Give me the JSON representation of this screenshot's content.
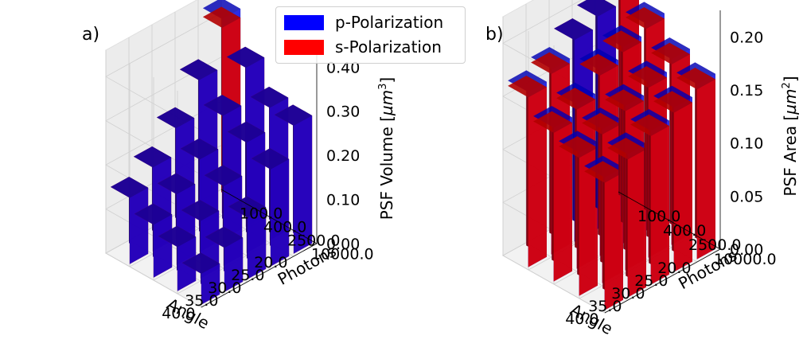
{
  "legend": {
    "p": {
      "label": "p-Polarization",
      "color": "#0000ff"
    },
    "s": {
      "label": "s-Polarization",
      "color": "#ff0000"
    }
  },
  "chart_data": [
    {
      "panel_label": "a)",
      "type": "bar3d",
      "xlabel": "Angle",
      "ylabel": "Photons",
      "zlabel": "PSF Volume [µm³]",
      "zlabel_prefix": "PSF Volume [",
      "zlabel_unit_base": "µm",
      "zlabel_unit_exp": "3",
      "zlabel_suffix": "]",
      "angle_ticks": [
        "20.0",
        "25.0",
        "30.0",
        "35.0",
        "40.0"
      ],
      "photon_ticks": [
        "10000.0",
        "2500.0",
        "400.0",
        "100.0"
      ],
      "zticks": [
        "0.00",
        "0.10",
        "0.20",
        "0.30",
        "0.40"
      ],
      "zlim": [
        0,
        0.46
      ],
      "angles": [
        20,
        25,
        30,
        35,
        40
      ],
      "photons": [
        10000,
        2500,
        400,
        100
      ],
      "series": [
        {
          "name": "s-Polarization",
          "values": [
            [
              0.29,
              0.3,
              0.36,
              0.42
            ],
            [
              0.22,
              0.25,
              0.28,
              0.33
            ],
            [
              0.14,
              0.18,
              0.21,
              0.25
            ],
            [
              0.1,
              0.13,
              0.16,
              0.19
            ],
            [
              0.07,
              0.1,
              0.12,
              0.15
            ]
          ]
        },
        {
          "name": "p-Polarization",
          "values": [
            [
              0.29,
              0.3,
              0.36,
              0.44
            ],
            [
              0.22,
              0.25,
              0.28,
              0.33
            ],
            [
              0.14,
              0.18,
              0.21,
              0.25
            ],
            [
              0.1,
              0.13,
              0.16,
              0.19
            ],
            [
              0.07,
              0.1,
              0.12,
              0.15
            ]
          ]
        }
      ]
    },
    {
      "panel_label": "b)",
      "type": "bar3d",
      "xlabel": "Angle",
      "ylabel": "Photons",
      "zlabel": "PSF Area [µm²]",
      "zlabel_prefix": "PSF Area [",
      "zlabel_unit_base": "µm",
      "zlabel_unit_exp": "2",
      "zlabel_suffix": "]",
      "angle_ticks": [
        "20.0",
        "25.0",
        "30.0",
        "35.0",
        "40.0"
      ],
      "photon_ticks": [
        "10000.0",
        "2500.0",
        "400.0",
        "100.0"
      ],
      "zticks": [
        "0.00",
        "0.05",
        "0.10",
        "0.15",
        "0.20"
      ],
      "zlim": [
        0,
        0.225
      ],
      "angles": [
        20,
        25,
        30,
        35,
        40
      ],
      "photons": [
        10000,
        2500,
        400,
        100
      ],
      "series": [
        {
          "name": "s-Polarization",
          "values": [
            [
              0.16,
              0.17,
              0.19,
              0.21
            ],
            [
              0.15,
              0.16,
              0.18,
              0.2
            ],
            [
              0.14,
              0.15,
              0.17,
              0.19
            ],
            [
              0.13,
              0.14,
              0.15,
              0.17
            ],
            [
              0.12,
              0.13,
              0.14,
              0.16
            ]
          ]
        },
        {
          "name": "p-Polarization",
          "values": [
            [
              0.165,
              0.175,
              0.195,
              0.22
            ],
            [
              0.155,
              0.165,
              0.185,
              0.2
            ],
            [
              0.145,
              0.155,
              0.175,
              0.19
            ],
            [
              0.135,
              0.145,
              0.155,
              0.175
            ],
            [
              0.125,
              0.135,
              0.145,
              0.165
            ]
          ]
        }
      ]
    }
  ]
}
